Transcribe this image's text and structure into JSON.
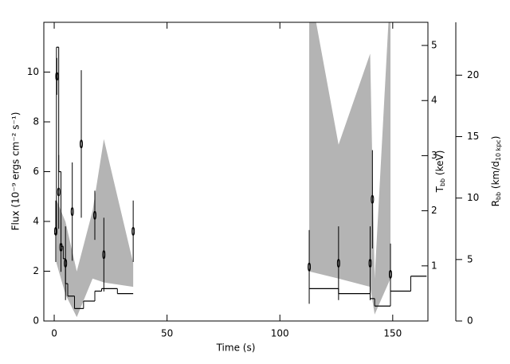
{
  "chart_data": {
    "type": "multi-axis",
    "xlabel": "Time (s)",
    "ylabel": "Flux (10⁻⁹ ergs cm⁻² s⁻¹)",
    "y2label": {
      "main": "T",
      "sub": "bb",
      "rest": " (keV)"
    },
    "y3label": {
      "main": "R",
      "sub": "bb",
      "rest": " (km/d",
      "sub2": "10 kpc",
      "end": ")"
    },
    "xlim": [
      -4.6,
      165.6
    ],
    "xticks": [
      0,
      50,
      100,
      150
    ],
    "ylim": [
      0,
      12
    ],
    "yticks": [
      0,
      2,
      4,
      6,
      8,
      10
    ],
    "y2lim": [
      0,
      5.42
    ],
    "y2ticks": [
      1,
      2,
      3,
      4,
      5
    ],
    "y3lim": [
      0,
      24.3
    ],
    "y3ticks": [
      0,
      5,
      10,
      15,
      20
    ],
    "layers": [
      {
        "type": "band",
        "axis": "y2",
        "color": "#b4b4b4",
        "groups": [
          {
            "x": [
              1,
              5,
              10,
              17,
              22,
              35
            ],
            "upper": [
              2.2,
              1.8,
              0.9,
              2.0,
              3.3,
              1.05
            ],
            "lower": [
              1.05,
              0.48,
              0.07,
              0.77,
              0.7,
              0.62
            ]
          },
          {
            "x": [
              113,
              126,
              140,
              142,
              149
            ],
            "upper": [
              6.1,
              3.2,
              4.85,
              0.77,
              6.1
            ],
            "lower": [
              0.9,
              0.77,
              0.62,
              0.12,
              0.77
            ]
          }
        ]
      },
      {
        "type": "step",
        "axis": "y",
        "color": "#000000",
        "bins": [
          0,
          1,
          2,
          3,
          4,
          5,
          6,
          9,
          13,
          18,
          21,
          28,
          35,
          113,
          126,
          140,
          142,
          149,
          158,
          165
        ],
        "values": [
          3.5,
          11,
          6,
          3,
          2.5,
          1.5,
          1,
          0.5,
          0.8,
          1.2,
          1.3,
          1.1,
          null,
          1.3,
          1.1,
          0.9,
          0.6,
          1.2,
          1.8
        ]
      },
      {
        "type": "errorbar",
        "axis": "y3",
        "color": "#000000",
        "x": [
          0.7,
          1.2,
          2,
          3,
          5,
          8,
          12,
          18,
          22,
          35,
          113,
          126,
          140,
          141,
          149
        ],
        "values": [
          7.3,
          19.9,
          10.5,
          6.0,
          4.7,
          8.9,
          14.4,
          8.6,
          5.4,
          7.3,
          4.4,
          4.7,
          4.7,
          9.9,
          3.8
        ],
        "errors": [
          2.5,
          1.5,
          3,
          2,
          3,
          4,
          6,
          2,
          3,
          2.5,
          3,
          3,
          3,
          4,
          2.5
        ]
      }
    ]
  }
}
